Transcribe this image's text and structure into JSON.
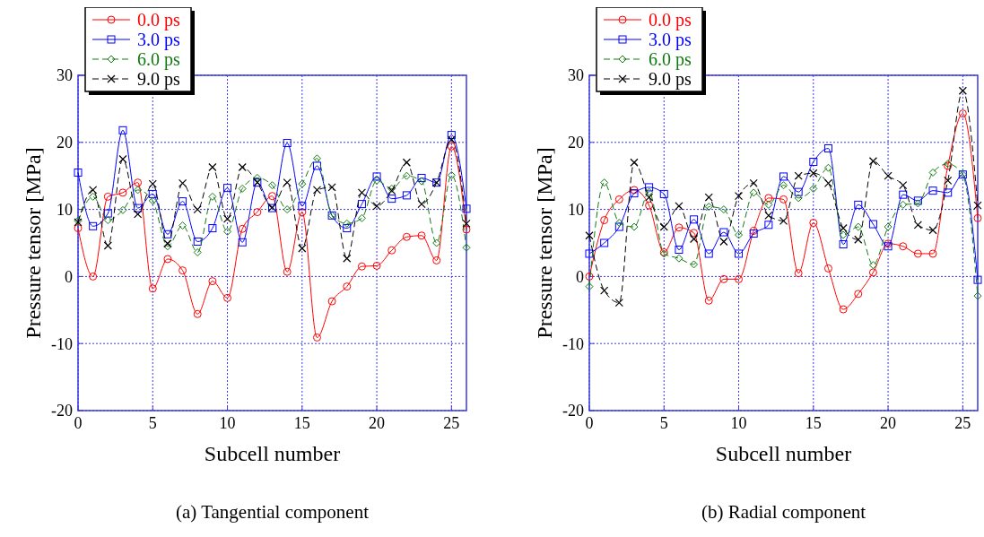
{
  "chart_data": [
    {
      "type": "line",
      "xlabel": "Subcell number",
      "ylabel": "Pressure tensor [MPa]",
      "annotations": [
        "(a) Tangential component"
      ],
      "x": [
        0,
        1,
        2,
        3,
        4,
        5,
        6,
        7,
        8,
        9,
        10,
        11,
        12,
        13,
        14,
        15,
        16,
        17,
        18,
        19,
        20,
        21,
        22,
        23,
        24,
        25,
        26
      ],
      "xlim": [
        0,
        26
      ],
      "xticks": [
        0,
        5,
        10,
        15,
        20,
        25
      ],
      "ylim": [
        -20,
        30
      ],
      "yticks": [
        -20,
        -10,
        0,
        10,
        20,
        30
      ],
      "grid": true,
      "legend": "top left",
      "series": [
        {
          "name": "0.0 ps",
          "color": "#ff0000",
          "marker": "circle",
          "line_style": "solid",
          "values": [
            7.2,
            0.0,
            11.9,
            12.5,
            14.0,
            -1.8,
            2.6,
            0.9,
            -5.6,
            -0.7,
            -3.2,
            7.1,
            9.6,
            12.0,
            0.7,
            9.6,
            -9.1,
            -3.7,
            -1.5,
            1.5,
            1.6,
            3.9,
            5.9,
            6.1,
            2.4,
            19.4,
            7.0
          ]
        },
        {
          "name": "3.0 ps",
          "color": "#0000ff",
          "marker": "square",
          "line_style": "solid",
          "values": [
            15.5,
            7.5,
            9.4,
            21.8,
            10.2,
            12.3,
            6.3,
            11.2,
            5.2,
            7.2,
            13.2,
            5.1,
            14.0,
            10.2,
            19.9,
            10.5,
            16.5,
            9.1,
            7.2,
            10.8,
            14.9,
            11.6,
            12.1,
            14.7,
            14.0,
            21.1,
            10.1
          ]
        },
        {
          "name": "6.0 ps",
          "color": "#107a10",
          "marker": "diamond",
          "line_style": "dashed",
          "values": [
            8.3,
            11.9,
            8.4,
            9.9,
            12.9,
            11.3,
            4.5,
            7.6,
            3.6,
            11.9,
            6.7,
            13.1,
            14.7,
            13.6,
            10.0,
            13.8,
            17.6,
            9.1,
            7.9,
            8.7,
            14.3,
            13.1,
            15.0,
            14.2,
            5.0,
            15.1,
            4.3
          ]
        },
        {
          "name": "9.0 ps",
          "color": "#000000",
          "marker": "cross",
          "line_style": "dashed",
          "values": [
            8.1,
            12.9,
            4.6,
            17.5,
            9.3,
            13.8,
            4.9,
            13.9,
            10.0,
            16.3,
            8.6,
            16.3,
            14.0,
            10.3,
            14.0,
            4.2,
            12.9,
            13.3,
            2.7,
            12.5,
            10.5,
            12.8,
            17.0,
            10.8,
            14.0,
            20.4,
            7.9
          ]
        }
      ]
    },
    {
      "type": "line",
      "xlabel": "Subcell number",
      "ylabel": "Pressure tensor [MPa]",
      "annotations": [
        "(b) Radial component"
      ],
      "x": [
        0,
        1,
        2,
        3,
        4,
        5,
        6,
        7,
        8,
        9,
        10,
        11,
        12,
        13,
        14,
        15,
        16,
        17,
        18,
        19,
        20,
        21,
        22,
        23,
        24,
        25,
        26
      ],
      "xlim": [
        0,
        26
      ],
      "xticks": [
        0,
        5,
        10,
        15,
        20,
        25
      ],
      "ylim": [
        -20,
        30
      ],
      "yticks": [
        -20,
        -10,
        0,
        10,
        20,
        30
      ],
      "grid": true,
      "legend": "top left",
      "series": [
        {
          "name": "0.0 ps",
          "color": "#ff0000",
          "marker": "circle",
          "line_style": "solid",
          "values": [
            0.0,
            8.4,
            11.5,
            12.9,
            10.6,
            3.6,
            7.3,
            6.5,
            -3.6,
            -0.4,
            -0.4,
            6.8,
            11.7,
            11.5,
            0.5,
            8.0,
            1.2,
            -4.9,
            -2.6,
            0.6,
            4.9,
            4.5,
            3.4,
            3.4,
            16.5,
            24.3,
            8.7
          ]
        },
        {
          "name": "3.0 ps",
          "color": "#0000ff",
          "marker": "square",
          "line_style": "solid",
          "values": [
            3.4,
            5.0,
            7.4,
            12.4,
            13.3,
            12.3,
            4.0,
            8.5,
            3.4,
            6.6,
            3.4,
            6.4,
            7.7,
            14.9,
            12.6,
            17.1,
            19.1,
            4.8,
            10.7,
            7.8,
            4.5,
            12.2,
            11.3,
            12.8,
            12.5,
            15.2,
            -0.5
          ]
        },
        {
          "name": "6.0 ps",
          "color": "#107a10",
          "marker": "diamond",
          "line_style": "dashed",
          "values": [
            -1.5,
            14.0,
            8.0,
            7.4,
            12.6,
            3.4,
            2.7,
            1.8,
            10.4,
            10.0,
            6.2,
            12.5,
            10.7,
            13.6,
            11.7,
            13.1,
            16.2,
            6.2,
            7.4,
            1.7,
            7.4,
            10.7,
            10.9,
            15.5,
            16.8,
            15.2,
            -2.9
          ]
        },
        {
          "name": "9.0 ps",
          "color": "#000000",
          "marker": "cross",
          "line_style": "dashed",
          "values": [
            6.1,
            -2.1,
            -3.9,
            17.0,
            11.8,
            7.4,
            10.5,
            5.6,
            11.8,
            5.2,
            12.0,
            13.9,
            9.1,
            8.3,
            15.0,
            15.4,
            13.9,
            7.2,
            5.5,
            17.2,
            15.0,
            13.6,
            7.7,
            6.9,
            14.3,
            27.7,
            10.6
          ]
        }
      ]
    }
  ]
}
